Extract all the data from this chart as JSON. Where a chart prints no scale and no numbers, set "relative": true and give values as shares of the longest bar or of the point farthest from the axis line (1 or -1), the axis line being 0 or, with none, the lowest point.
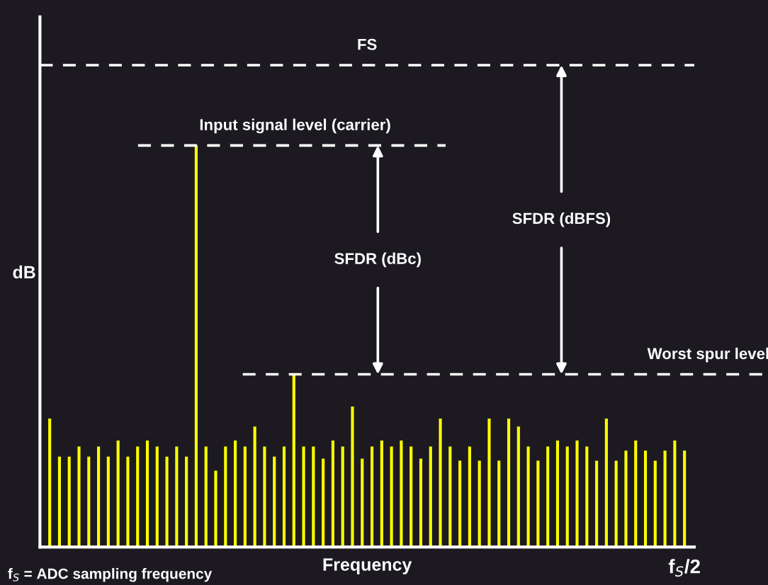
{
  "chart_data": {
    "type": "bar",
    "relative": true,
    "xlabel": "Frequency",
    "ylabel": "dB",
    "categories": [
      null,
      null,
      null,
      null,
      null,
      null,
      null,
      null,
      null,
      null,
      null,
      null,
      null,
      null,
      null,
      null,
      null,
      null,
      null,
      null,
      null,
      null,
      null,
      null,
      null,
      null,
      null,
      null,
      null,
      null,
      null,
      null,
      null,
      null,
      null,
      null,
      null,
      null,
      null,
      null,
      null,
      null,
      null,
      null,
      null,
      null,
      null,
      null,
      null,
      null,
      null,
      null,
      null,
      null,
      null,
      null,
      null,
      null,
      null,
      null,
      null,
      null,
      null,
      null,
      null,
      null
    ],
    "values": [
      0.32,
      0.225,
      0.225,
      0.25,
      0.225,
      0.25,
      0.225,
      0.265,
      0.225,
      0.25,
      0.265,
      0.25,
      0.225,
      0.25,
      0.225,
      1,
      0.25,
      0.19,
      0.25,
      0.265,
      0.25,
      0.3,
      0.25,
      0.225,
      0.25,
      0.43,
      0.25,
      0.25,
      0.22,
      0.265,
      0.25,
      0.35,
      0.22,
      0.25,
      0.265,
      0.25,
      0.265,
      0.25,
      0.22,
      0.25,
      0.32,
      0.25,
      0.215,
      0.25,
      0.215,
      0.32,
      0.215,
      0.32,
      0.3,
      0.25,
      0.215,
      0.25,
      0.265,
      0.25,
      0.265,
      0.25,
      0.215,
      0.32,
      0.215,
      0.24,
      0.265,
      0.24,
      0.215,
      0.24,
      0.265,
      0.24
    ],
    "color": "#ffff00",
    "ref_lines": [
      {
        "axis": "y",
        "value": 1.2,
        "label": "FS",
        "color": "#ffffff",
        "line_style": "dashed"
      },
      {
        "axis": "y",
        "value": 1,
        "label": "Input signal level (carrier)",
        "color": "#ffffff",
        "line_style": "dashed"
      },
      {
        "axis": "y",
        "value": 0.43,
        "label": "Worst spur level",
        "color": "#ffffff",
        "line_style": "dashed"
      }
    ],
    "annotations": [
      "SFDR (dBc)",
      "SFDR (dBFS)",
      "f$_{S}$/2",
      "f$_{S}$ = ADC sampling frequency"
    ],
    "grid": false,
    "legend": false
  }
}
